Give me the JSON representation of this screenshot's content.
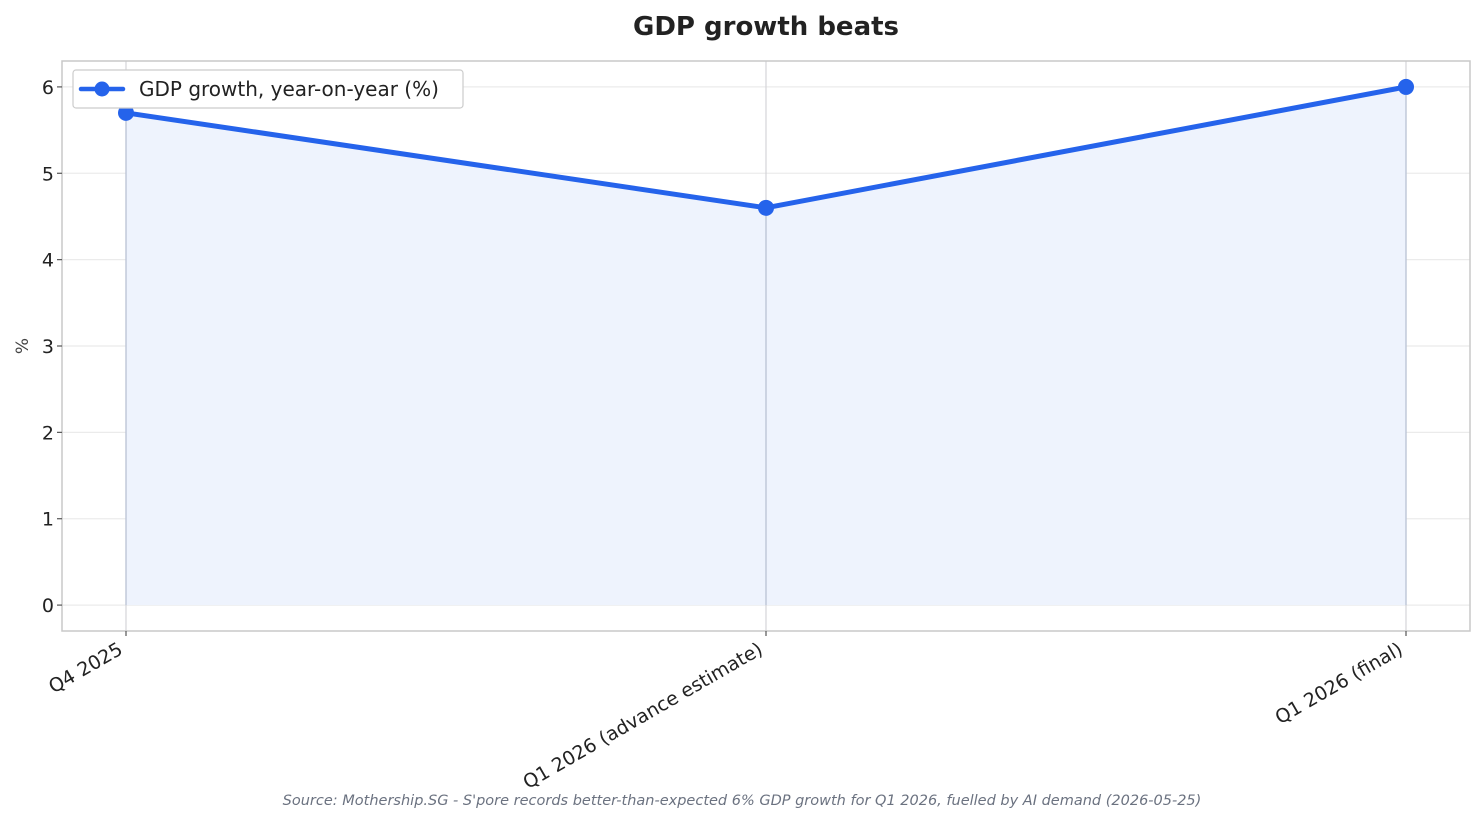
{
  "chart_data": {
    "type": "line",
    "title": "GDP growth beats",
    "ylabel": "%",
    "xlabel": "",
    "categories": [
      "Q4 2025",
      "Q1 2026 (advance estimate)",
      "Q1 2026 (final)"
    ],
    "series": [
      {
        "name": "GDP growth, year-on-year (%)",
        "values": [
          5.7,
          4.6,
          6.0
        ],
        "color": "#2563eb",
        "fill_color": "#eef3fd"
      }
    ],
    "ylim": [
      -0.3,
      6.3
    ],
    "yticks": [
      "0",
      "1",
      "2",
      "3",
      "4",
      "5",
      "6"
    ],
    "grid": true,
    "area_fill": true,
    "legend_position": "top-left",
    "source": "Source: Mothership.SG - S'pore records better-than-expected 6% GDP growth for Q1 2026, fuelled by AI demand (2026-05-25)"
  }
}
